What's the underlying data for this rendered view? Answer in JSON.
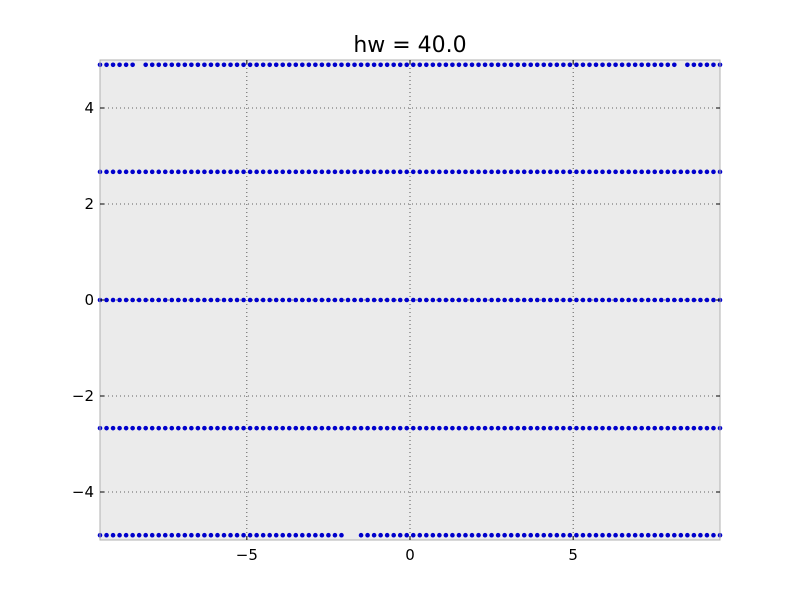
{
  "chart_data": {
    "type": "scatter",
    "title": "hw = 40.0",
    "xlabel": "",
    "ylabel": "",
    "xlim": [
      -9.5,
      9.5
    ],
    "ylim": [
      -5,
      5
    ],
    "x_ticks": [
      -5,
      0,
      5
    ],
    "x_tick_labels": [
      "−5",
      "0",
      "5"
    ],
    "y_ticks": [
      -4,
      -2,
      0,
      2,
      4
    ],
    "y_tick_labels": [
      "−4",
      "−2",
      "0",
      "2",
      "4"
    ],
    "grid": true,
    "legend": "none",
    "colors": {
      "points": "#0000cc",
      "plot_background": "#ebebeb",
      "grid": "#333333",
      "axes_border": "#b0b0b0"
    },
    "series": [
      {
        "y": 4.9,
        "x_start": -9.5,
        "x_end": 9.5,
        "x_step": 0.2,
        "gaps": [
          [
            -8.4,
            -8.2
          ],
          [
            8.2,
            8.4
          ]
        ]
      },
      {
        "y": 2.67,
        "x_start": -9.5,
        "x_end": 9.5,
        "x_step": 0.2,
        "gaps": []
      },
      {
        "y": 0,
        "x_start": -9.5,
        "x_end": 9.5,
        "x_step": 0.2,
        "gaps": []
      },
      {
        "y": -2.67,
        "x_start": -9.5,
        "x_end": 9.5,
        "x_step": 0.2,
        "gaps": []
      },
      {
        "y": -4.9,
        "x_start": -9.5,
        "x_end": 9.5,
        "x_step": 0.2,
        "gaps": [
          [
            -2.0,
            -1.7
          ]
        ]
      }
    ]
  }
}
